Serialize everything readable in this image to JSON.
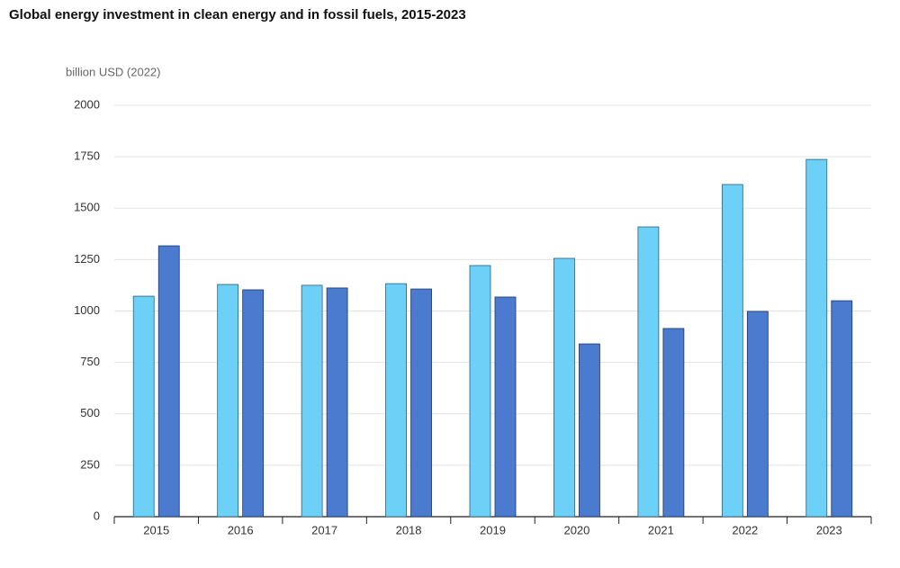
{
  "chart_data": {
    "type": "bar",
    "title": "Global energy investment in clean energy and in fossil fuels, 2015-2023",
    "y_label": "billion USD (2022)",
    "categories": [
      "2015",
      "2016",
      "2017",
      "2018",
      "2019",
      "2020",
      "2021",
      "2022",
      "2023"
    ],
    "series": [
      {
        "color": "#6dd0f7",
        "values": [
          1072,
          1129,
          1125,
          1133,
          1221,
          1256,
          1409,
          1615,
          1737
        ]
      },
      {
        "color": "#4a7bcf",
        "values": [
          1317,
          1103,
          1112,
          1107,
          1068,
          840,
          915,
          998,
          1050
        ]
      }
    ],
    "ylim": [
      0,
      2000
    ],
    "yticks": [
      0,
      250,
      500,
      750,
      1000,
      1250,
      1500,
      1750,
      2000
    ],
    "grid": true
  }
}
